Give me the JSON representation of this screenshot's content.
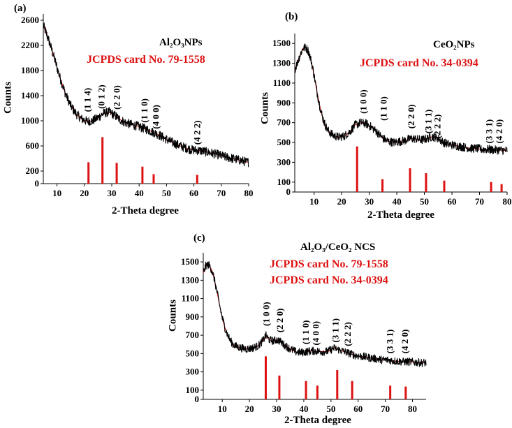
{
  "figure_alt": "XRD patterns of Al2O3 nanoparticles, CeO2 nanoparticles and Al2O3/CeO2 nanocomposite",
  "colors": {
    "reference": "#dd1111",
    "pattern": "#000000",
    "fit": "#cc0000"
  },
  "chart_data": [
    {
      "type": "line",
      "panel_label": "(a)",
      "title": "Al₂O₃NPs",
      "jcpds": [
        "JCPDS card No. 79-1558"
      ],
      "xlabel": "2-Theta degree",
      "ylabel": "Counts",
      "xlim": [
        5,
        80
      ],
      "ylim": [
        0,
        2700
      ],
      "x_ticks": [
        10,
        20,
        30,
        40,
        50,
        60,
        70,
        80
      ],
      "y_ticks": [
        0,
        200,
        600,
        1000,
        1400,
        1800,
        2200,
        2600
      ],
      "pattern_x": [
        5,
        7,
        9,
        11,
        13,
        15,
        17,
        19,
        21,
        23,
        25,
        27,
        29,
        31,
        33,
        35,
        37,
        39,
        41,
        43,
        45,
        47,
        49,
        51,
        53,
        55,
        57,
        59,
        61,
        63,
        65,
        67,
        69,
        71,
        73,
        75,
        77,
        79,
        80
      ],
      "pattern_y": [
        2520,
        2280,
        2000,
        1700,
        1440,
        1240,
        1110,
        1030,
        990,
        1000,
        1050,
        1120,
        1140,
        1090,
        1020,
        970,
        940,
        920,
        890,
        860,
        820,
        780,
        730,
        680,
        640,
        600,
        570,
        540,
        530,
        520,
        500,
        480,
        460,
        430,
        410,
        390,
        370,
        345,
        340
      ],
      "reference_lines": [
        {
          "x": 21.5,
          "value": 340
        },
        {
          "x": 26.6,
          "value": 740
        },
        {
          "x": 31.8,
          "value": 330
        },
        {
          "x": 41.2,
          "value": 270
        },
        {
          "x": 45.3,
          "value": 150
        },
        {
          "x": 61.2,
          "value": 140
        }
      ],
      "peak_labels": [
        {
          "text": "(1 1 4)",
          "x": 21.5,
          "y": 1140
        },
        {
          "text": "(0 1 2)",
          "x": 26.6,
          "y": 1190
        },
        {
          "text": "(2 2 0)",
          "x": 32.2,
          "y": 1180
        },
        {
          "text": "(1 1 0)",
          "x": 42.3,
          "y": 970
        },
        {
          "text": "(4 0 0)",
          "x": 46.5,
          "y": 870
        },
        {
          "text": "(4 2 2)",
          "x": 61.5,
          "y": 620
        }
      ]
    },
    {
      "type": "line",
      "panel_label": "(b)",
      "title": "CeO₂NPs",
      "jcpds": [
        "JCPDS card No. 34-0394"
      ],
      "xlabel": "2-Theta degree",
      "ylabel": "Counts",
      "xlim": [
        3,
        80
      ],
      "ylim": [
        0,
        1600
      ],
      "x_ticks": [
        10,
        20,
        30,
        40,
        50,
        60,
        70,
        80
      ],
      "y_ticks": [
        0,
        100,
        300,
        500,
        700,
        900,
        1100,
        1300,
        1500
      ],
      "pattern_x": [
        3,
        4,
        5,
        6,
        7,
        8,
        9,
        10,
        11,
        12,
        13,
        14,
        15,
        17,
        19,
        21,
        23,
        25,
        27,
        29,
        31,
        33,
        35,
        37,
        39,
        41,
        43,
        45,
        47,
        49,
        51,
        53,
        55,
        57,
        59,
        61,
        63,
        65,
        67,
        69,
        71,
        73,
        75,
        77,
        79,
        80
      ],
      "pattern_y": [
        1230,
        1310,
        1390,
        1450,
        1460,
        1420,
        1320,
        1180,
        1020,
        880,
        760,
        680,
        620,
        570,
        555,
        565,
        610,
        680,
        700,
        690,
        650,
        600,
        540,
        510,
        500,
        510,
        520,
        540,
        535,
        525,
        540,
        560,
        540,
        500,
        480,
        470,
        460,
        450,
        440,
        440,
        430,
        430,
        425,
        425,
        420,
        420
      ],
      "reference_lines": [
        {
          "x": 25.6,
          "value": 460
        },
        {
          "x": 34.8,
          "value": 130
        },
        {
          "x": 44.8,
          "value": 240
        },
        {
          "x": 50.6,
          "value": 190
        },
        {
          "x": 57.2,
          "value": 115
        },
        {
          "x": 74.2,
          "value": 100
        },
        {
          "x": 78.0,
          "value": 80
        }
      ],
      "peak_labels": [
        {
          "text": "(1 0 0)",
          "x": 28.2,
          "y": 790
        },
        {
          "text": "(1 1 0)",
          "x": 35.5,
          "y": 720
        },
        {
          "text": "(2 2 0)",
          "x": 45.5,
          "y": 640
        },
        {
          "text": "(3 1 1)",
          "x": 51.8,
          "y": 590
        },
        {
          "text": "(2 2 2)",
          "x": 55.0,
          "y": 540
        },
        {
          "text": "(3 3 1)",
          "x": 73.8,
          "y": 490
        },
        {
          "text": "(4 2 0)",
          "x": 77.5,
          "y": 490
        }
      ]
    },
    {
      "type": "line",
      "panel_label": "(c)",
      "title": "Al₂O₃/CeO₂ NCS",
      "jcpds": [
        "JCPDS card No. 79-1558",
        "JCPDS card No. 34-0394"
      ],
      "xlabel": "2-Theta degree",
      "ylabel": "Counts",
      "xlim": [
        3,
        85
      ],
      "ylim": [
        0,
        1600
      ],
      "x_ticks": [
        10,
        20,
        30,
        40,
        50,
        60,
        70,
        80
      ],
      "y_ticks": [
        0,
        100,
        300,
        500,
        700,
        900,
        1100,
        1300,
        1500
      ],
      "pattern_x": [
        3,
        4,
        5,
        6,
        7,
        8,
        9,
        10,
        11,
        12,
        13,
        14,
        15,
        17,
        19,
        21,
        23,
        25,
        26,
        27,
        28,
        29,
        30,
        31,
        33,
        35,
        37,
        39,
        41,
        43,
        45,
        47,
        49,
        51,
        53,
        55,
        57,
        59,
        61,
        63,
        65,
        67,
        69,
        71,
        73,
        75,
        77,
        79,
        81,
        83,
        85
      ],
      "pattern_y": [
        1380,
        1460,
        1470,
        1420,
        1320,
        1180,
        1030,
        890,
        780,
        700,
        640,
        600,
        580,
        560,
        550,
        560,
        580,
        640,
        700,
        660,
        640,
        640,
        650,
        640,
        590,
        550,
        520,
        510,
        520,
        530,
        525,
        520,
        525,
        560,
        540,
        520,
        500,
        480,
        470,
        460,
        450,
        440,
        430,
        430,
        420,
        415,
        410,
        410,
        405,
        400,
        400
      ],
      "reference_lines": [
        {
          "x": 26.0,
          "value": 470
        },
        {
          "x": 31.0,
          "value": 260
        },
        {
          "x": 40.8,
          "value": 200
        },
        {
          "x": 45.0,
          "value": 150
        },
        {
          "x": 52.3,
          "value": 320
        },
        {
          "x": 57.8,
          "value": 200
        },
        {
          "x": 71.8,
          "value": 150
        },
        {
          "x": 77.5,
          "value": 140
        }
      ],
      "peak_labels": [
        {
          "text": "(1 0 0)",
          "x": 26.5,
          "y": 800
        },
        {
          "text": "(2 2 0)",
          "x": 31.5,
          "y": 730
        },
        {
          "text": "(1 1 0)",
          "x": 41.0,
          "y": 600
        },
        {
          "text": "(4 0 0)",
          "x": 44.8,
          "y": 590
        },
        {
          "text": "(3 1 1)",
          "x": 52.0,
          "y": 620
        },
        {
          "text": "(2 2 2)",
          "x": 56.5,
          "y": 580
        },
        {
          "text": "(3 3 1)",
          "x": 72.0,
          "y": 500
        },
        {
          "text": "(4 2 0)",
          "x": 77.5,
          "y": 500
        }
      ]
    }
  ]
}
